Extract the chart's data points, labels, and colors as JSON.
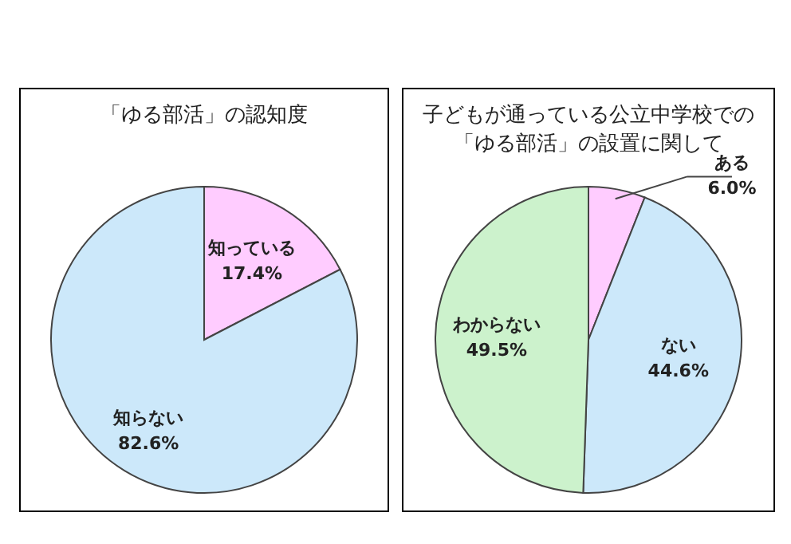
{
  "chart_data": [
    {
      "type": "pie",
      "title": "「ゆる部活」の認知度",
      "categories": [
        "知っている",
        "知らない"
      ],
      "values": [
        17.4,
        82.6
      ],
      "colors": [
        "#ffccff",
        "#cce8fa"
      ],
      "value_labels": [
        "17.4%",
        "82.6%"
      ]
    },
    {
      "type": "pie",
      "title": "子どもが通っている公立中学校での「ゆる部活」の設置に関して",
      "categories": [
        "ある",
        "ない",
        "わからない"
      ],
      "values": [
        6.0,
        44.6,
        49.5
      ],
      "colors": [
        "#ffccff",
        "#cce8fa",
        "#ccf2cc"
      ],
      "value_labels": [
        "6.0%",
        "44.6%",
        "49.5%"
      ]
    }
  ]
}
